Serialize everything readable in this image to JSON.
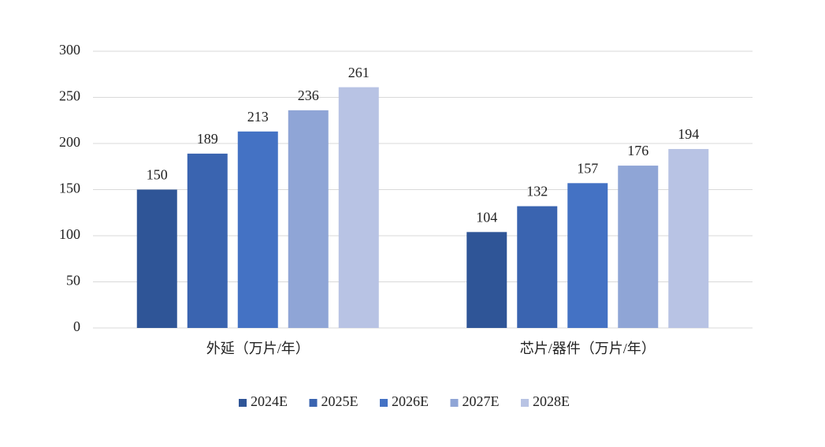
{
  "chart_data": {
    "type": "bar",
    "categories": [
      "外延（万片/年）",
      "芯片/器件（万片/年）"
    ],
    "series": [
      {
        "name": "2024E",
        "color": "#2f5597",
        "values": [
          150,
          104
        ]
      },
      {
        "name": "2025E",
        "color": "#3a64b0",
        "values": [
          189,
          132
        ]
      },
      {
        "name": "2026E",
        "color": "#4472c4",
        "values": [
          213,
          157
        ]
      },
      {
        "name": "2027E",
        "color": "#8fa5d6",
        "values": [
          236,
          176
        ]
      },
      {
        "name": "2028E",
        "color": "#b8c3e4",
        "values": [
          261,
          194
        ]
      }
    ],
    "ylim": [
      0,
      300
    ],
    "yticks": [
      0,
      50,
      100,
      150,
      200,
      250,
      300
    ],
    "grid": true,
    "legend": "bottom"
  }
}
